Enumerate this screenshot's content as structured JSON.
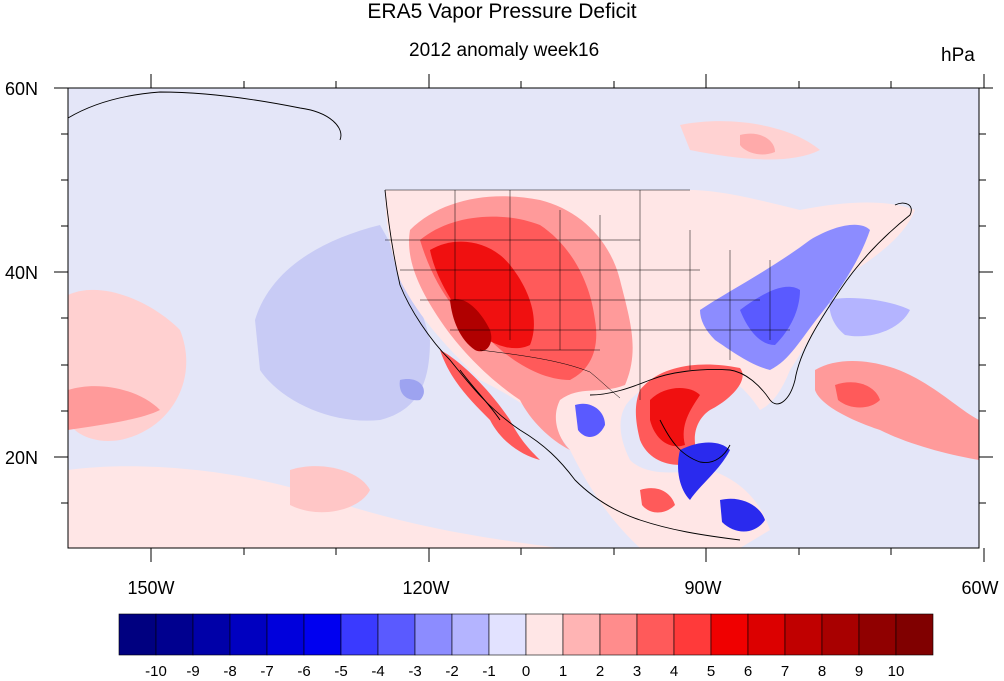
{
  "title": "ERA5 Vapor Pressure Deficit",
  "subtitle": "2012 anomaly week16",
  "units": "hPa",
  "lat_labels": [
    "60N",
    "40N",
    "20N"
  ],
  "lon_labels": [
    "150W",
    "120W",
    "90W",
    "60W"
  ],
  "colorbar": {
    "labels": [
      "-10",
      "-9",
      "-8",
      "-7",
      "-6",
      "-5",
      "-4",
      "-3",
      "-2",
      "-1",
      "0",
      "1",
      "2",
      "3",
      "4",
      "5",
      "6",
      "7",
      "8",
      "9",
      "10"
    ],
    "colors": [
      "#000080",
      "#00008f",
      "#0000a8",
      "#0000c0",
      "#0000dc",
      "#0000f0",
      "#3a3aff",
      "#5a5aff",
      "#8c8cff",
      "#b4b4ff",
      "#e2e2ff",
      "#ffe6e6",
      "#ffb4b4",
      "#ff8c8c",
      "#ff5a5a",
      "#ff3a3a",
      "#f00000",
      "#dc0000",
      "#c00000",
      "#a80000",
      "#900000",
      "#800000"
    ]
  },
  "colors": {
    "ocean_base": "#e4e6f8",
    "land_base": "#ffe6e6"
  }
}
